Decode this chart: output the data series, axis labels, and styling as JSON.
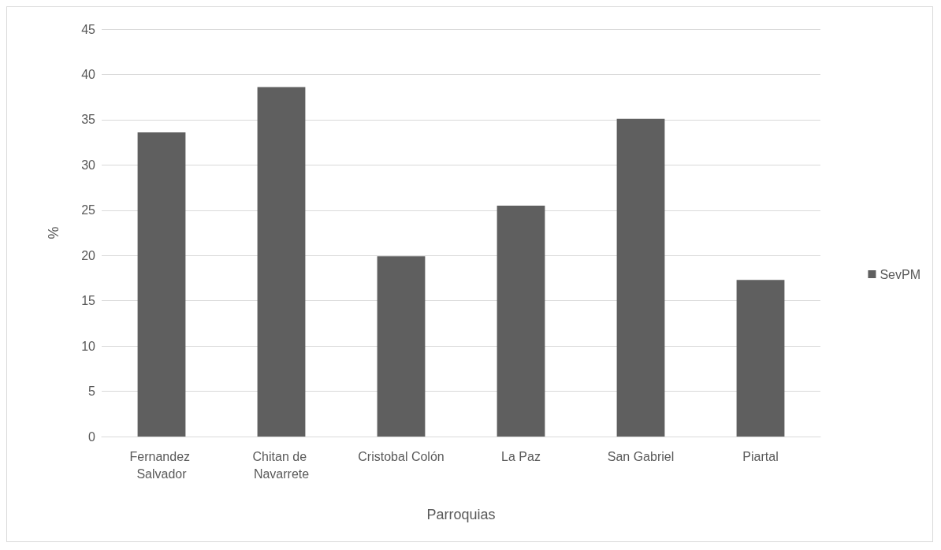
{
  "chart_data": {
    "type": "bar",
    "categories": [
      "Fernandez Salvador",
      "Chitan de Navarrete",
      "Cristobal Colón",
      "La Paz",
      "San Gabriel",
      "Piartal"
    ],
    "series": [
      {
        "name": "SevPM",
        "color": "#5f5f5f",
        "values": [
          33.6,
          38.6,
          19.9,
          25.5,
          35.1,
          17.3
        ]
      }
    ],
    "xlabel": "Parroquias",
    "ylabel": "%",
    "ylim": [
      0,
      45
    ],
    "yticks": [
      0,
      5,
      10,
      15,
      20,
      25,
      30,
      35,
      40,
      45
    ],
    "grid": "y",
    "legend": "right"
  }
}
